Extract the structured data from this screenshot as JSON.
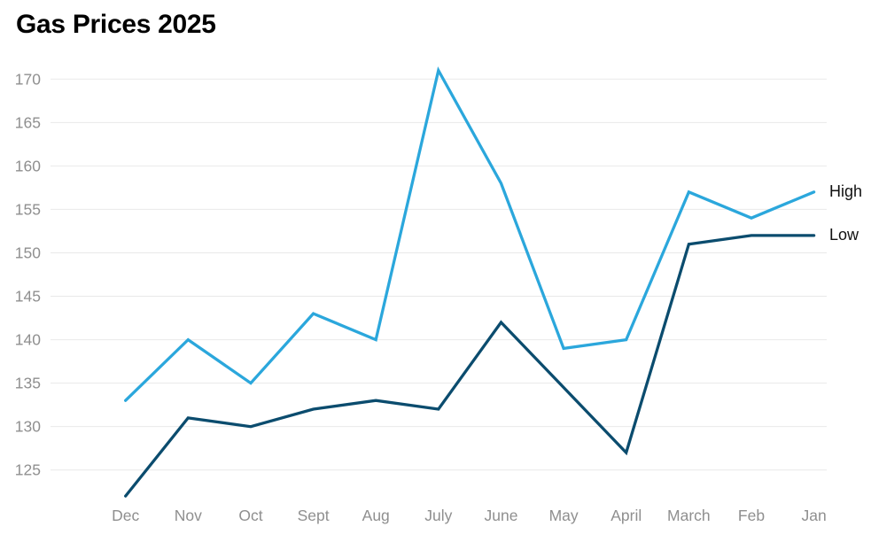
{
  "title": "Gas Prices 2025",
  "chart_data": {
    "type": "line",
    "title": "Gas Prices 2025",
    "categories": [
      "Dec",
      "Nov",
      "Oct",
      "Sept",
      "Aug",
      "July",
      "June",
      "May",
      "April",
      "March",
      "Feb",
      "Jan"
    ],
    "series": [
      {
        "name": "High",
        "color": "#2ba7dc",
        "values": [
          133,
          140,
          135,
          143,
          140,
          171,
          158,
          139,
          140,
          157,
          154,
          157
        ]
      },
      {
        "name": "Low",
        "color": "#0b4c6e",
        "values": [
          122,
          131,
          130,
          132,
          133,
          132,
          142,
          134.5,
          127,
          151,
          152,
          152
        ]
      }
    ],
    "xlabel": "",
    "ylabel": "",
    "yticks": [
      125,
      130,
      135,
      140,
      145,
      150,
      155,
      160,
      165,
      170
    ],
    "ylim": [
      120.5,
      171.5
    ],
    "grid": "horizontal",
    "legend_position": "right-of-line-ends"
  },
  "style": {
    "grid_color": "#e9e9e9",
    "axis_text_color": "#8f8f8f",
    "title_color": "#000000",
    "series_label_color": "#111111",
    "background": "#ffffff"
  }
}
